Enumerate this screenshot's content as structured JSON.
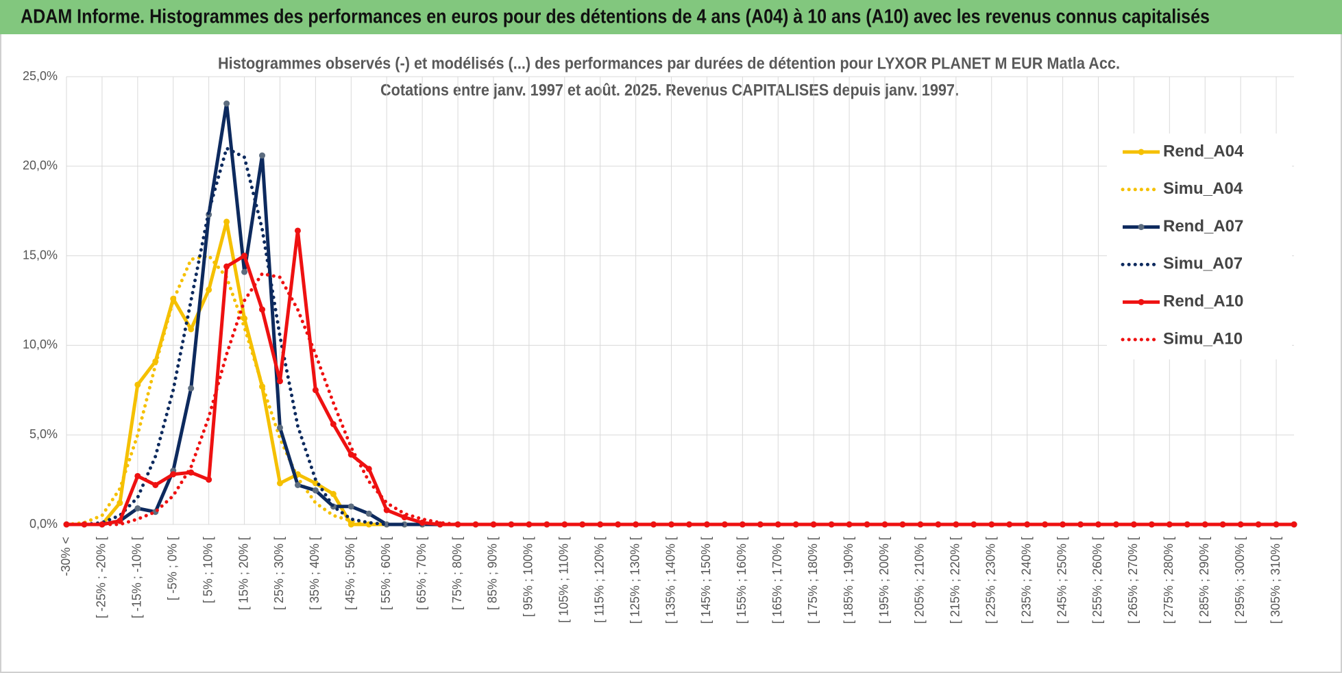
{
  "header": {
    "title": "ADAM Informe. Histogrammes des performances en euros pour des détentions de 4 ans (A04) à 10 ans (A10) avec les revenus connus capitalisés"
  },
  "chart_data": {
    "type": "line",
    "title": [
      "Histogrammes observés (-) et modélisés (...) des performances par durées de détention pour LYXOR PLANET M EUR Matla Acc.",
      "Cotations entre janv. 1997 et août. 2025. Revenus CAPITALISES depuis janv. 1997."
    ],
    "categories": [
      "-30% <",
      null,
      "[ -25% ; -20% [",
      null,
      "[ -15% ; -10% [",
      null,
      "[ -5% ; 0% [",
      null,
      "[ 5% ; 10% [",
      null,
      "[ 15% ; 20% [",
      null,
      "[ 25% ; 30% [",
      null,
      "[ 35% ; 40% [",
      null,
      "[ 45% ; 50% [",
      null,
      "[ 55% ; 60% [",
      null,
      "[ 65% ; 70% [",
      null,
      "[ 75% ; 80% [",
      null,
      "[ 85% ; 90% [",
      null,
      "[ 95% ; 100% [",
      null,
      "[ 105% ; 110% [",
      null,
      "[ 115% ; 120% [",
      null,
      "[ 125% ; 130% [",
      null,
      "[ 135% ; 140% [",
      null,
      "[ 145% ; 150% [",
      null,
      "[ 155% ; 160% [",
      null,
      "[ 165% ; 170% [",
      null,
      "[ 175% ; 180% [",
      null,
      "[ 185% ; 190% [",
      null,
      "[ 195% ; 200% [",
      null,
      "[ 205% ; 210% [",
      null,
      "[ 215% ; 220% [",
      null,
      "[ 225% ; 230% [",
      null,
      "[ 235% ; 240% [",
      null,
      "[ 245% ; 250% [",
      null,
      "[ 255% ; 260% [",
      null,
      "[ 265% ; 270% [",
      null,
      "[ 275% ; 280% [",
      null,
      "[ 285% ; 290% [",
      null,
      "[ 295% ; 300% [",
      null,
      "[ 305% ; 310% [",
      null
    ],
    "ylim": [
      0,
      25
    ],
    "yticks": [
      {
        "value": 0,
        "label": "0,0%"
      },
      {
        "value": 5,
        "label": "5,0%"
      },
      {
        "value": 10,
        "label": "10,0%"
      },
      {
        "value": 15,
        "label": "15,0%"
      },
      {
        "value": 20,
        "label": "20,0%"
      },
      {
        "value": 25,
        "label": "25,0%"
      }
    ],
    "grid": true,
    "legend": "right",
    "series": [
      {
        "name": "Rend_A04",
        "color": "#f5c000",
        "style": "solid",
        "marker": "#f5c000",
        "values": [
          0,
          0,
          0,
          1.2,
          7.8,
          9.1,
          12.6,
          10.9,
          13.1,
          16.9,
          11.5,
          7.7,
          2.3,
          2.8,
          2.3,
          1.7,
          0,
          0,
          0,
          0,
          0,
          0,
          0,
          0,
          0,
          0,
          0,
          0,
          0,
          0,
          0,
          0,
          0,
          0,
          0,
          0,
          0,
          0,
          0,
          0,
          0,
          0,
          0,
          0,
          0,
          0,
          0,
          0,
          0,
          0,
          0,
          0,
          0,
          0,
          0,
          0,
          0,
          0,
          0,
          0,
          0,
          0,
          0,
          0,
          0,
          0,
          0,
          0,
          0,
          0
        ]
      },
      {
        "name": "Simu_A04",
        "color": "#f5c000",
        "style": "dotted",
        "values": [
          0,
          0.1,
          0.5,
          2,
          5,
          8.9,
          12.5,
          14.8,
          15,
          13.8,
          11,
          7.8,
          4.8,
          2.6,
          1.2,
          0.5,
          0.2,
          0,
          0,
          0,
          0,
          0,
          0,
          0,
          0,
          0,
          0,
          0,
          0,
          0,
          0,
          0,
          0,
          0,
          0,
          0,
          0,
          0,
          0,
          0,
          0,
          0,
          0,
          0,
          0,
          0,
          0,
          0,
          0,
          0,
          0,
          0,
          0,
          0,
          0,
          0,
          0,
          0,
          0,
          0,
          0,
          0,
          0,
          0,
          0,
          0,
          0,
          0,
          0,
          0
        ]
      },
      {
        "name": "Rend_A07",
        "color": "#0d2a5e",
        "style": "solid",
        "marker": "#5d6d80",
        "values": [
          0,
          0,
          0,
          0.2,
          0.9,
          0.7,
          3,
          7.6,
          17.3,
          23.5,
          14.1,
          20.6,
          5.4,
          2.2,
          1.9,
          1,
          1,
          0.6,
          0,
          0,
          0,
          0,
          0,
          0,
          0,
          0,
          0,
          0,
          0,
          0,
          0,
          0,
          0,
          0,
          0,
          0,
          0,
          0,
          0,
          0,
          0,
          0,
          0,
          0,
          0,
          0,
          0,
          0,
          0,
          0,
          0,
          0,
          0,
          0,
          0,
          0,
          0,
          0,
          0,
          0,
          0,
          0,
          0,
          0,
          0,
          0,
          0,
          0,
          0,
          0
        ]
      },
      {
        "name": "Simu_A07",
        "color": "#0d2a5e",
        "style": "dotted",
        "values": [
          0,
          0,
          0.1,
          0.5,
          1.5,
          3.8,
          7.5,
          12.5,
          17.5,
          21,
          20.5,
          16.5,
          10.5,
          5.5,
          2.5,
          1,
          0.3,
          0.1,
          0,
          0,
          0,
          0,
          0,
          0,
          0,
          0,
          0,
          0,
          0,
          0,
          0,
          0,
          0,
          0,
          0,
          0,
          0,
          0,
          0,
          0,
          0,
          0,
          0,
          0,
          0,
          0,
          0,
          0,
          0,
          0,
          0,
          0,
          0,
          0,
          0,
          0,
          0,
          0,
          0,
          0,
          0,
          0,
          0,
          0,
          0,
          0,
          0,
          0,
          0,
          0
        ]
      },
      {
        "name": "Rend_A10",
        "color": "#ee1111",
        "style": "solid",
        "marker": "#ee1111",
        "values": [
          0,
          0,
          0,
          0.2,
          2.7,
          2.2,
          2.8,
          2.9,
          2.5,
          14.4,
          15,
          12,
          8,
          16.4,
          7.5,
          5.6,
          3.9,
          3.1,
          0.8,
          0.4,
          0.1,
          0,
          0,
          0,
          0,
          0,
          0,
          0,
          0,
          0,
          0,
          0,
          0,
          0,
          0,
          0,
          0,
          0,
          0,
          0,
          0,
          0,
          0,
          0,
          0,
          0,
          0,
          0,
          0,
          0,
          0,
          0,
          0,
          0,
          0,
          0,
          0,
          0,
          0,
          0,
          0,
          0,
          0,
          0,
          0,
          0,
          0,
          0,
          0,
          0
        ]
      },
      {
        "name": "Simu_A10",
        "color": "#ee1111",
        "style": "dotted",
        "values": [
          0,
          0,
          0,
          0,
          0.3,
          0.7,
          1.6,
          3.2,
          6,
          9.5,
          12.5,
          14,
          13.8,
          12,
          9.5,
          6.8,
          4.3,
          2.4,
          1.2,
          0.6,
          0.3,
          0.1,
          0,
          0,
          0,
          0,
          0,
          0,
          0,
          0,
          0,
          0,
          0,
          0,
          0,
          0,
          0,
          0,
          0,
          0,
          0,
          0,
          0,
          0,
          0,
          0,
          0,
          0,
          0,
          0,
          0,
          0,
          0,
          0,
          0,
          0,
          0,
          0,
          0,
          0,
          0,
          0,
          0,
          0,
          0,
          0,
          0,
          0,
          0,
          0
        ]
      }
    ]
  }
}
